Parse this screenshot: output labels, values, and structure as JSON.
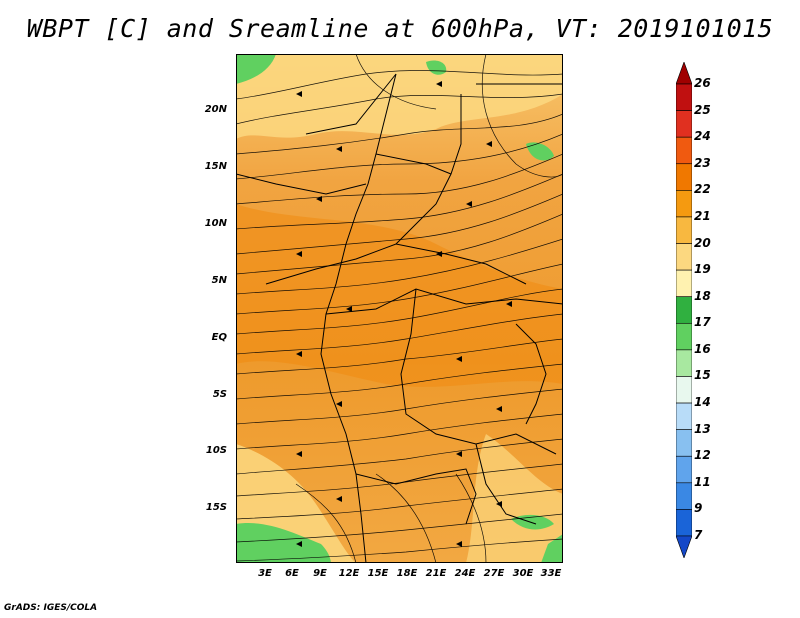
{
  "title": "WBPT [C] and Sreamline at 600hPa, VT: 2019101015",
  "footer": "GrADS: IGES/COLA",
  "map": {
    "lat_labels": [
      "20N",
      "15N",
      "10N",
      "5N",
      "EQ",
      "5S",
      "10S",
      "15S"
    ],
    "lon_labels": [
      "3E",
      "6E",
      "9E",
      "12E",
      "15E",
      "18E",
      "21E",
      "24E",
      "27E",
      "30E",
      "33E"
    ]
  },
  "colorbar": {
    "labels": [
      "26",
      "25",
      "24",
      "23",
      "22",
      "21",
      "20",
      "19",
      "18",
      "17",
      "16",
      "15",
      "14",
      "13",
      "12",
      "11",
      "9",
      "7"
    ],
    "colors": [
      "#a00000",
      "#c01010",
      "#e03020",
      "#f05a10",
      "#f07800",
      "#f59a10",
      "#f8b840",
      "#fcd880",
      "#fff2b0",
      "#30b040",
      "#60d060",
      "#a8e8a0",
      "#e8f8ee",
      "#b8dcf8",
      "#88c0f0",
      "#60a4ec",
      "#3a88e4",
      "#1a64d8",
      "#1448c8"
    ],
    "colors_meaning": "colorbar fill colors from top (above 26) to bottom (below 7)"
  }
}
